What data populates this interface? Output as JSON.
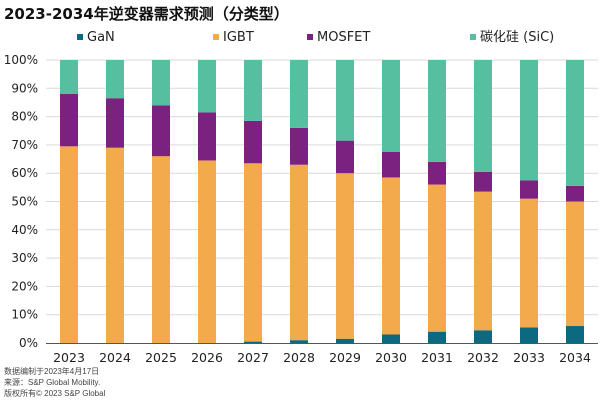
{
  "title": "2023-2034年逆变器需求预测（分类型）",
  "footer": {
    "line1": "数据编制于2023年4月17日",
    "line2": "来源：S&P Global Mobility.",
    "line3": "版权所有© 2023 S&P Global"
  },
  "colors": {
    "GaN": "#0b6a82",
    "IGBT": "#f2aa4c",
    "MOSFET": "#7b2280",
    "SiC": "#55bf9f",
    "grid": "#d9d9d9",
    "axis": "#555555"
  },
  "chart_data": {
    "type": "bar",
    "stacked": true,
    "title": "2023-2034年逆变器需求预测（分类型）",
    "xlabel": "",
    "ylabel": "",
    "ylim": [
      0,
      100
    ],
    "yticks": [
      "0%",
      "10%",
      "20%",
      "30%",
      "40%",
      "50%",
      "60%",
      "70%",
      "80%",
      "90%",
      "100%"
    ],
    "categories": [
      "2023",
      "2024",
      "2025",
      "2026",
      "2027",
      "2028",
      "2029",
      "2030",
      "2031",
      "2032",
      "2033",
      "2034"
    ],
    "legend_position": "top",
    "series": [
      {
        "name": "GaN",
        "color_key": "GaN",
        "values": [
          0,
          0,
          0,
          0,
          0.5,
          1,
          1.5,
          3,
          4,
          4.5,
          5.5,
          6
        ]
      },
      {
        "name": "IGBT",
        "color_key": "IGBT",
        "values": [
          69.5,
          69,
          66,
          64.5,
          63,
          62,
          58.5,
          55.5,
          52,
          49,
          45.5,
          44
        ]
      },
      {
        "name": "MOSFET",
        "color_key": "MOSFET",
        "values": [
          18.5,
          17.5,
          18,
          17,
          15,
          13,
          11.5,
          9,
          8,
          7,
          6.5,
          5.5
        ]
      },
      {
        "name": "碳化硅 (SiC)",
        "color_key": "SiC",
        "values": [
          12,
          13.5,
          16,
          18.5,
          21.5,
          24,
          28.5,
          32.5,
          36,
          39.5,
          42.5,
          44.5
        ]
      }
    ]
  }
}
